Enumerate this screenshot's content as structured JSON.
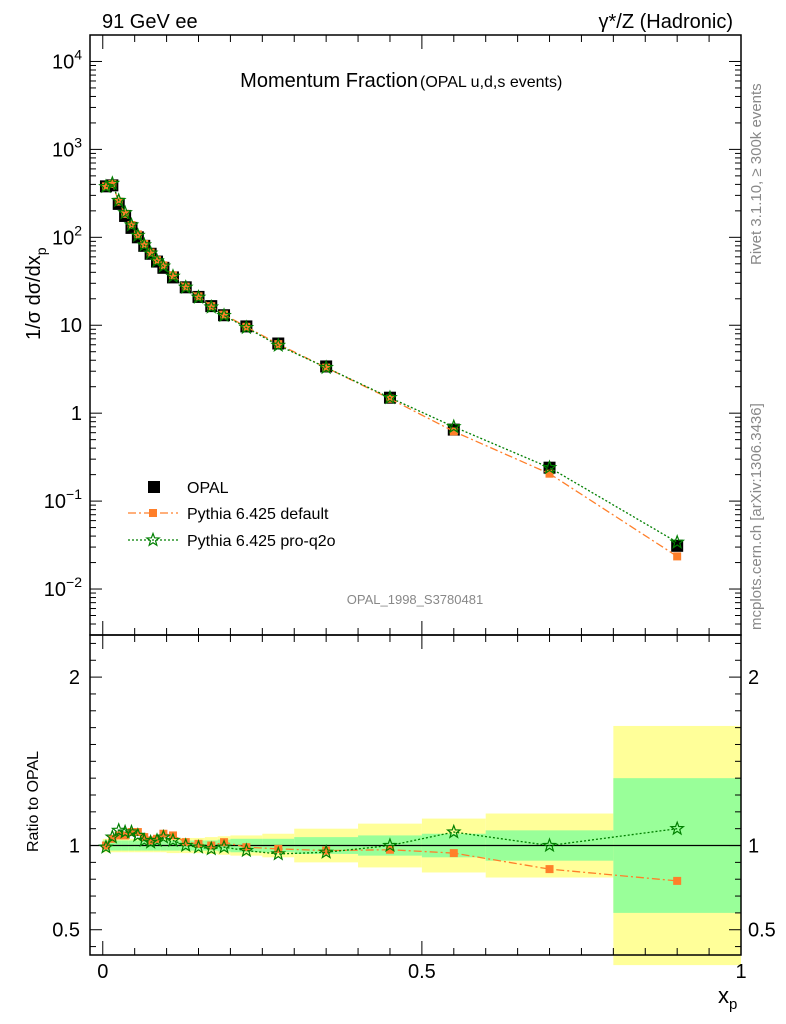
{
  "header": {
    "left": "91 GeV ee",
    "right": "γ*/Z (Hadronic)"
  },
  "side_labels": {
    "rivet": "Rivet 3.1.10, ≥ 300k events",
    "mcplots": "mcplots.cern.ch [arXiv:1306.3436]"
  },
  "colors": {
    "opal": "#000000",
    "pythia_default": "#ff7f2a",
    "pythia_proq2o": "#007f00",
    "band_inner": "#99ff99",
    "band_outer": "#ffff99"
  },
  "chart_data": [
    {
      "type": "scatter",
      "title": "Momentum Fraction",
      "subtitle": "(OPAL u,d,s events)",
      "watermark": "OPAL_1998_S3780481",
      "ylabel": "1/σ dσ/dx",
      "ylabel_sub": "p",
      "yscale": "log",
      "ylim": [
        0.003,
        20000
      ],
      "xlim": [
        -0.02,
        1.0
      ],
      "ytick_labels": [
        {
          "value": 10000,
          "base": "10",
          "exp": "4"
        },
        {
          "value": 1000,
          "base": "10",
          "exp": "3"
        },
        {
          "value": 100,
          "base": "10",
          "exp": "2"
        },
        {
          "value": 10,
          "base": "10",
          "exp": ""
        },
        {
          "value": 1,
          "base": "1",
          "exp": ""
        },
        {
          "value": 0.1,
          "base": "10",
          "exp": "−1"
        },
        {
          "value": 0.01,
          "base": "10",
          "exp": "−2"
        }
      ],
      "legend": [
        {
          "label": "OPAL",
          "marker": "square"
        },
        {
          "label": "Pythia 6.425 default",
          "marker": "square-small"
        },
        {
          "label": "Pythia 6.425 pro-q2o",
          "marker": "star"
        }
      ],
      "x": [
        0.005,
        0.015,
        0.025,
        0.035,
        0.045,
        0.055,
        0.065,
        0.075,
        0.085,
        0.095,
        0.11,
        0.13,
        0.15,
        0.17,
        0.19,
        0.225,
        0.275,
        0.35,
        0.45,
        0.55,
        0.7,
        0.9
      ],
      "series": [
        {
          "name": "OPAL",
          "values": [
            380,
            390,
            240,
            175,
            128,
            100,
            80,
            65,
            53,
            45,
            35,
            27,
            21,
            16.5,
            13,
            9.7,
            6.2,
            3.4,
            1.5,
            0.65,
            0.24,
            0.031
          ]
        },
        {
          "name": "Pythia 6.425 default",
          "values": [
            380,
            405,
            255,
            185,
            138,
            108,
            84,
            67,
            55,
            48,
            37,
            27.5,
            21.3,
            16.5,
            13.2,
            9.6,
            6.1,
            3.3,
            1.46,
            0.62,
            0.205,
            0.0235
          ]
        },
        {
          "name": "Pythia 6.425 pro-q2o",
          "values": [
            377,
            410,
            262,
            190,
            138,
            105,
            82,
            66,
            54,
            47,
            36,
            27,
            20.8,
            16.1,
            12.9,
            9.4,
            5.9,
            3.3,
            1.5,
            0.7,
            0.24,
            0.034
          ]
        }
      ]
    },
    {
      "type": "line",
      "ylabel": "Ratio to OPAL",
      "xlabel": "x",
      "xlabel_sub": "p",
      "ylim": [
        0.35,
        2.25
      ],
      "xlim": [
        -0.02,
        1.0
      ],
      "ytick_labels": [
        {
          "value": 0.5,
          "label": "0.5"
        },
        {
          "value": 1,
          "label": "1"
        },
        {
          "value": 2,
          "label": "2"
        }
      ],
      "xtick_labels": [
        {
          "value": 0,
          "label": "0"
        },
        {
          "value": 0.5,
          "label": "0.5"
        },
        {
          "value": 1,
          "label": "1"
        }
      ],
      "bands": {
        "bins": [
          [
            0,
            0.01
          ],
          [
            0.01,
            0.02
          ],
          [
            0.02,
            0.03
          ],
          [
            0.03,
            0.04
          ],
          [
            0.04,
            0.05
          ],
          [
            0.05,
            0.06
          ],
          [
            0.06,
            0.07
          ],
          [
            0.07,
            0.08
          ],
          [
            0.08,
            0.09
          ],
          [
            0.09,
            0.1
          ],
          [
            0.1,
            0.12
          ],
          [
            0.12,
            0.14
          ],
          [
            0.14,
            0.16
          ],
          [
            0.16,
            0.18
          ],
          [
            0.18,
            0.2
          ],
          [
            0.2,
            0.25
          ],
          [
            0.25,
            0.3
          ],
          [
            0.3,
            0.4
          ],
          [
            0.4,
            0.5
          ],
          [
            0.5,
            0.6
          ],
          [
            0.6,
            0.8
          ],
          [
            0.8,
            1.0
          ]
        ],
        "inner": [
          0.03,
          0.03,
          0.03,
          0.03,
          0.03,
          0.03,
          0.03,
          0.03,
          0.03,
          0.03,
          0.03,
          0.03,
          0.03,
          0.03,
          0.035,
          0.04,
          0.04,
          0.05,
          0.06,
          0.07,
          0.09,
          0.4
        ],
        "outer": [
          0.04,
          0.04,
          0.04,
          0.04,
          0.04,
          0.04,
          0.04,
          0.04,
          0.04,
          0.04,
          0.045,
          0.045,
          0.045,
          0.05,
          0.055,
          0.06,
          0.07,
          0.1,
          0.13,
          0.16,
          0.19,
          0.71
        ]
      },
      "series": [
        {
          "name": "Pythia 6.425 default",
          "values": [
            1.0,
            1.04,
            1.06,
            1.06,
            1.08,
            1.08,
            1.05,
            1.03,
            1.04,
            1.07,
            1.06,
            1.02,
            1.01,
            1.0,
            1.02,
            0.99,
            0.98,
            0.97,
            0.975,
            0.955,
            0.86,
            0.79
          ]
        },
        {
          "name": "Pythia 6.425 pro-q2o",
          "values": [
            0.99,
            1.05,
            1.09,
            1.08,
            1.08,
            1.06,
            1.03,
            1.02,
            1.03,
            1.05,
            1.03,
            1.0,
            0.99,
            0.98,
            0.99,
            0.97,
            0.95,
            0.96,
            1.0,
            1.08,
            1.0,
            1.1
          ]
        }
      ],
      "reference_line": 1
    }
  ]
}
